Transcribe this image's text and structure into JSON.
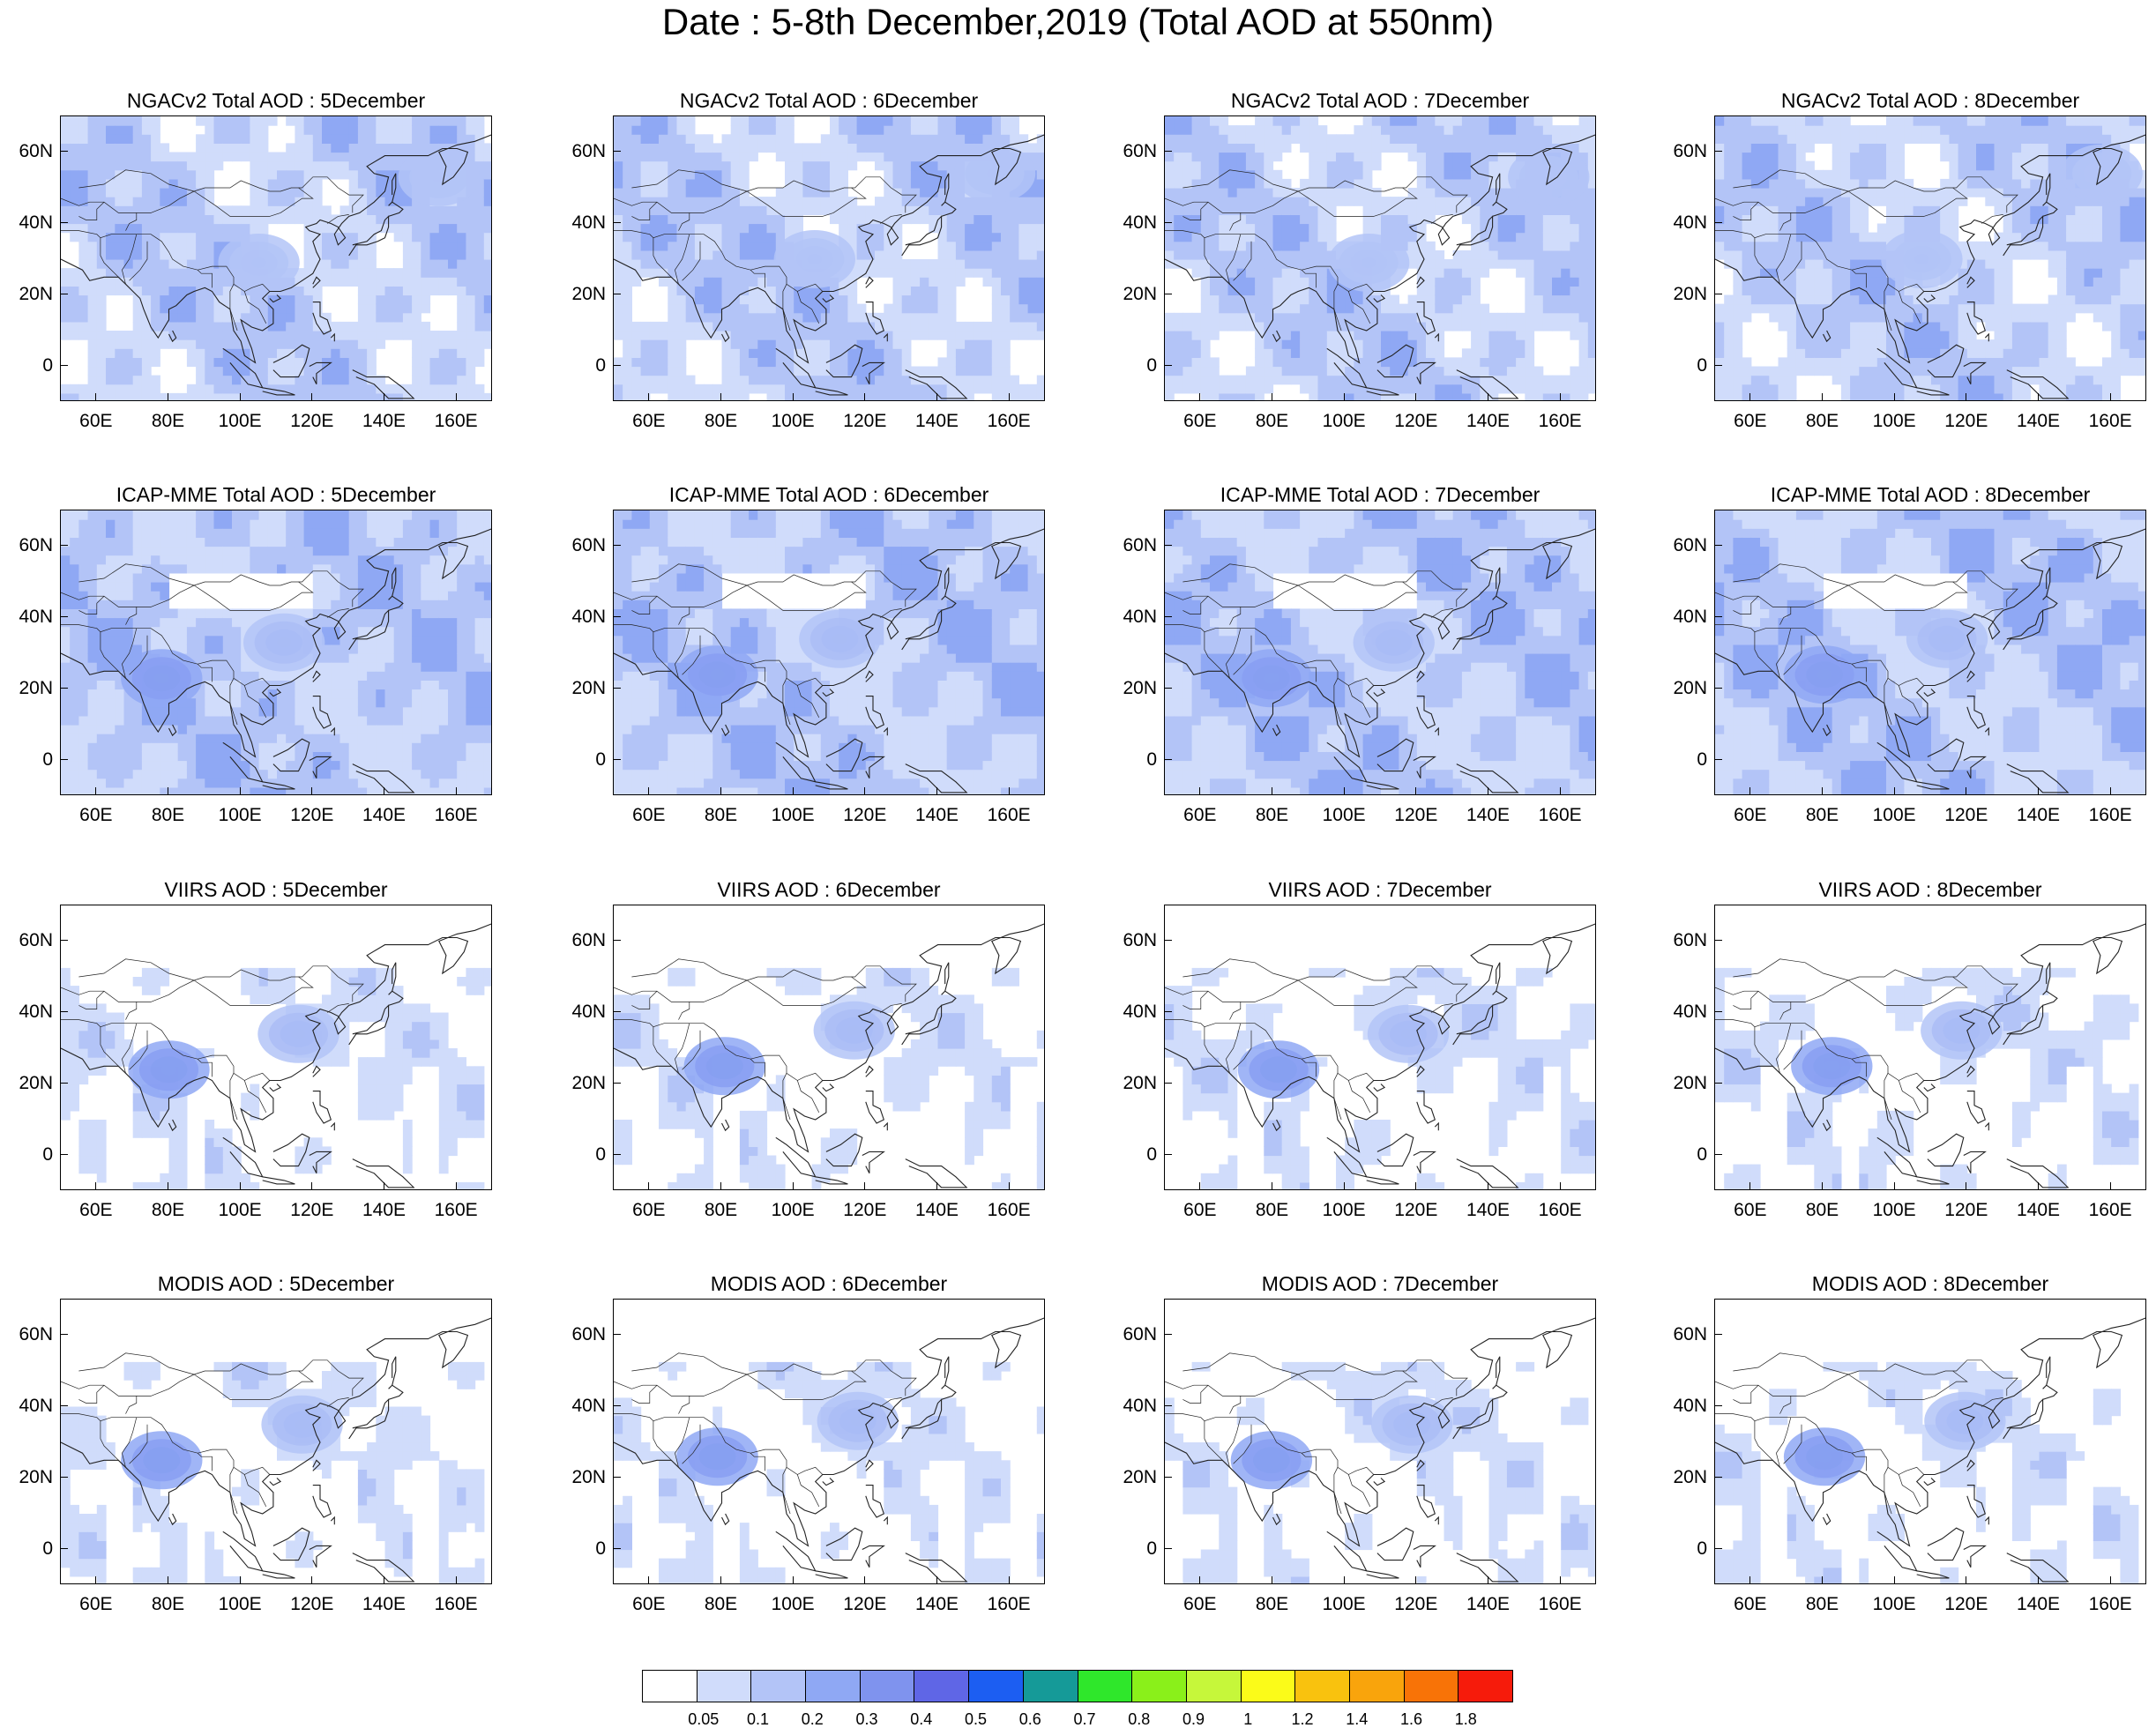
{
  "title": "Date : 5-8th December,2019 (Total AOD at 550nm)",
  "chart_data": {
    "type": "heatmap",
    "panels_layout": "4 rows x 4 columns (rows = product, columns = date)",
    "x_axis": {
      "range": [
        50,
        170
      ],
      "ticks": [
        60,
        80,
        100,
        120,
        140,
        160
      ],
      "tick_labels": [
        "60E",
        "80E",
        "100E",
        "120E",
        "140E",
        "160E"
      ]
    },
    "y_axis": {
      "range": [
        -10,
        70
      ],
      "ticks": [
        0,
        20,
        40,
        60
      ],
      "tick_labels": [
        "0",
        "20N",
        "40N",
        "60N"
      ]
    },
    "panels": [
      {
        "title": "NGACv2 Total AOD : 5December",
        "product": "NGACv2",
        "day": 5
      },
      {
        "title": "NGACv2 Total AOD : 6December",
        "product": "NGACv2",
        "day": 6
      },
      {
        "title": "NGACv2 Total AOD : 7December",
        "product": "NGACv2",
        "day": 7
      },
      {
        "title": "NGACv2 Total AOD : 8December",
        "product": "NGACv2",
        "day": 8
      },
      {
        "title": "ICAP-MME Total AOD : 5December",
        "product": "ICAP-MME",
        "day": 5
      },
      {
        "title": "ICAP-MME Total AOD : 6December",
        "product": "ICAP-MME",
        "day": 6
      },
      {
        "title": "ICAP-MME Total AOD : 7December",
        "product": "ICAP-MME",
        "day": 7
      },
      {
        "title": "ICAP-MME Total AOD : 8December",
        "product": "ICAP-MME",
        "day": 8
      },
      {
        "title": "VIIRS AOD : 5December",
        "product": "VIIRS",
        "day": 5
      },
      {
        "title": "VIIRS AOD : 6December",
        "product": "VIIRS",
        "day": 6
      },
      {
        "title": "VIIRS AOD : 7December",
        "product": "VIIRS",
        "day": 7
      },
      {
        "title": "VIIRS AOD : 8December",
        "product": "VIIRS",
        "day": 8
      },
      {
        "title": "MODIS AOD : 5December",
        "product": "MODIS",
        "day": 5
      },
      {
        "title": "MODIS AOD : 6December",
        "product": "MODIS",
        "day": 6
      },
      {
        "title": "MODIS AOD : 7December",
        "product": "MODIS",
        "day": 7
      },
      {
        "title": "MODIS AOD : 8December",
        "product": "MODIS",
        "day": 8
      }
    ],
    "colorbar": {
      "labels": [
        "0.05",
        "0.1",
        "0.2",
        "0.3",
        "0.4",
        "0.5",
        "0.6",
        "0.7",
        "0.8",
        "0.9",
        "1",
        "1.2",
        "1.4",
        "1.6",
        "1.8"
      ],
      "colors": [
        "#ffffff",
        "#d0dcfb",
        "#b3c4f7",
        "#8fa8f4",
        "#7f93ee",
        "#5f66e6",
        "#1c5ef2",
        "#159a98",
        "#2fe72b",
        "#8af01a",
        "#c6f73a",
        "#fbfb19",
        "#f9c20e",
        "#f9a40c",
        "#f87307",
        "#f61b0b"
      ]
    },
    "hotspots": [
      {
        "row": 0,
        "lon": 105,
        "lat": 29,
        "level": 6
      },
      {
        "row": 0,
        "lon": 155,
        "lat": 53,
        "level": 4
      },
      {
        "row": 1,
        "lon": 78,
        "lat": 23,
        "level": 9
      },
      {
        "row": 1,
        "lon": 112,
        "lat": 33,
        "level": 8
      },
      {
        "row": 2,
        "lon": 80,
        "lat": 24,
        "level": 9
      },
      {
        "row": 2,
        "lon": 116,
        "lat": 34,
        "level": 8
      },
      {
        "row": 3,
        "lon": 78,
        "lat": 25,
        "level": 9
      },
      {
        "row": 3,
        "lon": 117,
        "lat": 35,
        "level": 8
      }
    ]
  }
}
